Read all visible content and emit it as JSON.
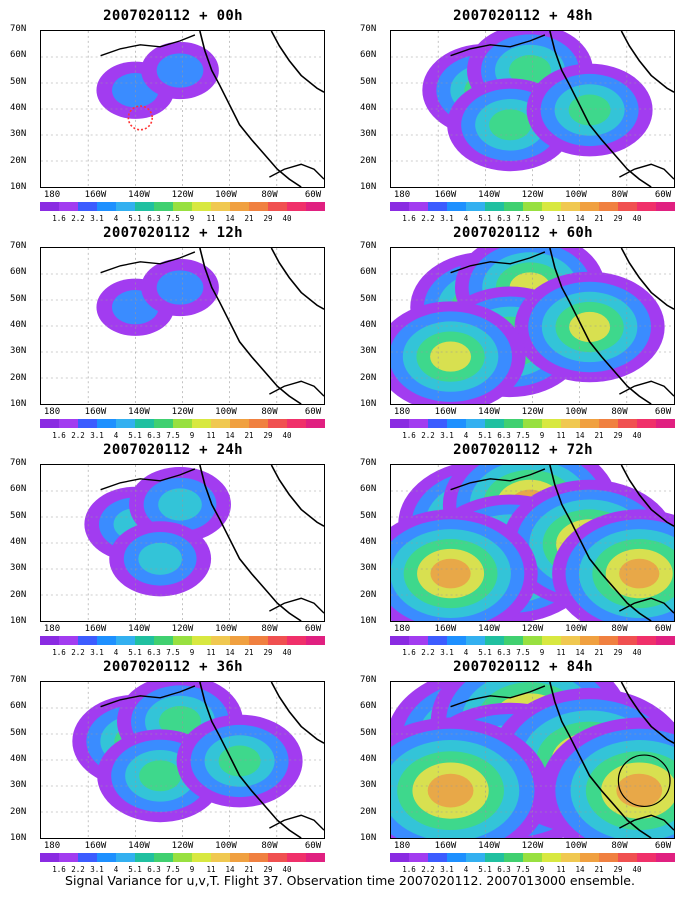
{
  "colors": {
    "scale": [
      "#8a2be2",
      "#a23cf0",
      "#3c5cff",
      "#1e90ff",
      "#33b0f0",
      "#20c0a0",
      "#40d070",
      "#98e040",
      "#d8e840",
      "#f0c850",
      "#f0a040",
      "#f08040",
      "#f05050",
      "#f0306a",
      "#e02080"
    ],
    "levels": [
      "#a23cf0",
      "#3a8cff",
      "#33c4d8",
      "#3ed88c",
      "#d8e050",
      "#e8a848"
    ],
    "coast": "#000000",
    "grid": "#999999",
    "verification": "#ff3333"
  },
  "colorbar": {
    "labels": [
      "1.6",
      "2.2",
      "3.1",
      "4",
      "5.1",
      "6.3",
      "7.5",
      "9",
      "11",
      "14",
      "21",
      "29",
      "40"
    ]
  },
  "axes": {
    "y_ticks": [
      "70N",
      "60N",
      "50N",
      "40N",
      "30N",
      "20N",
      "10N"
    ],
    "x_ticks": [
      "180",
      "160W",
      "140W",
      "120W",
      "100W",
      "80W",
      "60W"
    ]
  },
  "panels": [
    {
      "title": "2007020112 + 00h",
      "intensity": 1
    },
    {
      "title": "2007020112 + 48h",
      "intensity": 3
    },
    {
      "title": "2007020112 + 12h",
      "intensity": 1
    },
    {
      "title": "2007020112 + 60h",
      "intensity": 4
    },
    {
      "title": "2007020112 + 24h",
      "intensity": 2
    },
    {
      "title": "2007020112 + 72h",
      "intensity": 5
    },
    {
      "title": "2007020112 + 36h",
      "intensity": 3
    },
    {
      "title": "2007020112 + 84h",
      "intensity": 6
    }
  ],
  "caption": "Signal Variance for u,v,T. Flight 37. Observation time 2007020112. 2007013000 ensemble."
}
